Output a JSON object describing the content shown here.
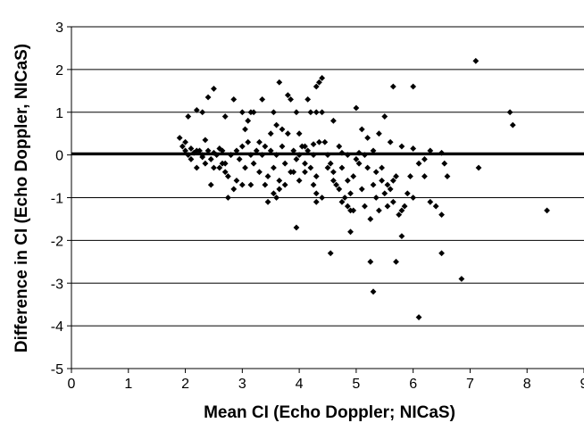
{
  "chart_data": {
    "type": "scatter",
    "title": "",
    "xlabel": "Mean CI (Echo Doppler; NICaS)",
    "ylabel": "Difference in CI (Echo Doppler, NICaS)",
    "xlim": [
      0,
      9
    ],
    "ylim": [
      -5,
      3
    ],
    "xticks": [
      "0",
      "1",
      "2",
      "3",
      "4",
      "5",
      "6",
      "7",
      "8",
      "9"
    ],
    "yticks": [
      "-5",
      "-4",
      "-3",
      "-2",
      "-1",
      "0",
      "1",
      "2",
      "3"
    ],
    "grid": "horizontal",
    "reference_line_y": 0.03,
    "marker": "diamond",
    "marker_color": "#000000",
    "points": [
      [
        1.9,
        0.4
      ],
      [
        1.95,
        0.2
      ],
      [
        2.0,
        0.1
      ],
      [
        2.05,
        0.0
      ],
      [
        2.1,
        -0.1
      ],
      [
        2.15,
        0.05
      ],
      [
        2.2,
        -0.3
      ],
      [
        2.25,
        0.1
      ],
      [
        2.3,
        0.0
      ],
      [
        2.35,
        -0.2
      ],
      [
        2.4,
        0.1
      ],
      [
        2.45,
        -0.1
      ],
      [
        2.5,
        0.05
      ],
      [
        2.55,
        0.0
      ],
      [
        2.6,
        -0.3
      ],
      [
        2.65,
        0.1
      ],
      [
        2.7,
        -0.2
      ],
      [
        2.75,
        -0.5
      ],
      [
        2.8,
        0.0
      ],
      [
        2.85,
        -0.8
      ],
      [
        2.9,
        0.1
      ],
      [
        2.95,
        -0.1
      ],
      [
        3.0,
        0.2
      ],
      [
        3.05,
        -0.3
      ],
      [
        3.1,
        0.3
      ],
      [
        3.15,
        0.0
      ],
      [
        3.2,
        -0.2
      ],
      [
        3.25,
        0.1
      ],
      [
        3.3,
        -0.4
      ],
      [
        3.35,
        0.0
      ],
      [
        3.4,
        0.2
      ],
      [
        3.45,
        -0.5
      ],
      [
        3.5,
        0.1
      ],
      [
        3.55,
        -0.3
      ],
      [
        3.6,
        0.0
      ],
      [
        3.65,
        -0.6
      ],
      [
        3.7,
        0.2
      ],
      [
        3.75,
        -0.2
      ],
      [
        3.8,
        0.5
      ],
      [
        3.85,
        -0.4
      ],
      [
        3.9,
        0.1
      ],
      [
        3.95,
        -0.1
      ],
      [
        4.0,
        0.0
      ],
      [
        4.05,
        0.2
      ],
      [
        4.1,
        -0.2
      ],
      [
        4.15,
        0.1
      ],
      [
        4.2,
        -0.3
      ],
      [
        4.25,
        0.0
      ],
      [
        4.3,
        -0.5
      ],
      [
        4.35,
        0.3
      ],
      [
        2.05,
        0.9
      ],
      [
        2.2,
        1.05
      ],
      [
        2.3,
        1.0
      ],
      [
        2.4,
        1.35
      ],
      [
        2.5,
        1.55
      ],
      [
        2.7,
        0.9
      ],
      [
        2.85,
        1.3
      ],
      [
        3.0,
        1.0
      ],
      [
        3.15,
        1.0
      ],
      [
        3.2,
        1.0
      ],
      [
        3.35,
        1.3
      ],
      [
        3.55,
        1.0
      ],
      [
        3.65,
        1.7
      ],
      [
        3.8,
        1.4
      ],
      [
        3.85,
        1.3
      ],
      [
        3.95,
        1.0
      ],
      [
        4.2,
        1.0
      ],
      [
        4.3,
        1.6
      ],
      [
        4.35,
        1.7
      ],
      [
        4.4,
        1.8
      ],
      [
        4.15,
        1.3
      ],
      [
        4.3,
        1.0
      ],
      [
        4.4,
        1.0
      ],
      [
        2.0,
        0.3
      ],
      [
        2.1,
        0.15
      ],
      [
        2.2,
        0.1
      ],
      [
        2.35,
        0.35
      ],
      [
        2.6,
        0.15
      ],
      [
        2.8,
        0.0
      ],
      [
        3.05,
        0.6
      ],
      [
        3.1,
        0.8
      ],
      [
        3.3,
        0.3
      ],
      [
        3.5,
        0.5
      ],
      [
        3.6,
        0.7
      ],
      [
        3.7,
        0.6
      ],
      [
        4.0,
        0.5
      ],
      [
        4.1,
        0.2
      ],
      [
        4.25,
        0.25
      ],
      [
        2.3,
        -0.05
      ],
      [
        2.5,
        -0.3
      ],
      [
        2.45,
        -0.7
      ],
      [
        2.65,
        -0.2
      ],
      [
        2.7,
        -0.4
      ],
      [
        2.75,
        -1.0
      ],
      [
        2.9,
        -0.6
      ],
      [
        3.0,
        -0.7
      ],
      [
        3.15,
        -0.7
      ],
      [
        3.4,
        -0.7
      ],
      [
        3.45,
        -1.1
      ],
      [
        3.55,
        -0.9
      ],
      [
        3.65,
        -0.8
      ],
      [
        3.75,
        -0.7
      ],
      [
        3.9,
        -0.4
      ],
      [
        4.0,
        -0.6
      ],
      [
        4.1,
        -0.4
      ],
      [
        4.25,
        -0.7
      ],
      [
        4.3,
        -0.9
      ],
      [
        4.4,
        -1.0
      ],
      [
        4.3,
        -1.1
      ],
      [
        3.95,
        -1.7
      ],
      [
        3.6,
        -1.0
      ],
      [
        4.5,
        0.0
      ],
      [
        4.55,
        -0.2
      ],
      [
        4.6,
        -0.4
      ],
      [
        4.65,
        -0.7
      ],
      [
        4.7,
        -0.8
      ],
      [
        4.75,
        -0.3
      ],
      [
        4.8,
        -1.0
      ],
      [
        4.85,
        -1.2
      ],
      [
        4.9,
        -1.3
      ],
      [
        4.95,
        -0.5
      ],
      [
        5.0,
        -0.1
      ],
      [
        5.05,
        -0.2
      ],
      [
        5.1,
        -0.8
      ],
      [
        5.15,
        -1.2
      ],
      [
        5.2,
        -0.3
      ],
      [
        5.25,
        -1.5
      ],
      [
        5.3,
        -0.7
      ],
      [
        5.35,
        -1.0
      ],
      [
        5.4,
        -1.3
      ],
      [
        5.45,
        -0.6
      ],
      [
        5.5,
        -0.9
      ],
      [
        5.55,
        -1.2
      ],
      [
        5.6,
        -0.8
      ],
      [
        5.65,
        -1.1
      ],
      [
        5.7,
        -0.5
      ],
      [
        5.75,
        -1.4
      ],
      [
        5.8,
        -1.3
      ],
      [
        5.85,
        -1.2
      ],
      [
        5.9,
        -0.9
      ],
      [
        6.0,
        -1.0
      ],
      [
        6.1,
        -0.2
      ],
      [
        6.2,
        -0.5
      ],
      [
        6.3,
        -1.1
      ],
      [
        6.4,
        -1.2
      ],
      [
        6.5,
        -1.4
      ],
      [
        6.55,
        -0.2
      ],
      [
        6.6,
        -0.5
      ],
      [
        4.55,
        -2.3
      ],
      [
        4.9,
        -1.8
      ],
      [
        5.25,
        -2.5
      ],
      [
        5.3,
        -3.2
      ],
      [
        5.7,
        -2.5
      ],
      [
        5.8,
        -1.9
      ],
      [
        6.1,
        -3.8
      ],
      [
        6.5,
        -2.3
      ],
      [
        6.85,
        -2.9
      ],
      [
        8.35,
        -1.3
      ],
      [
        7.1,
        2.2
      ],
      [
        7.7,
        1.0
      ],
      [
        7.75,
        0.7
      ],
      [
        7.15,
        -0.3
      ],
      [
        6.0,
        1.6
      ],
      [
        5.65,
        1.6
      ],
      [
        5.0,
        1.1
      ],
      [
        5.1,
        0.6
      ],
      [
        5.5,
        0.9
      ],
      [
        5.4,
        0.5
      ],
      [
        5.2,
        0.4
      ],
      [
        5.3,
        0.1
      ],
      [
        4.6,
        0.8
      ],
      [
        4.7,
        0.2
      ],
      [
        4.45,
        0.3
      ],
      [
        5.6,
        0.3
      ],
      [
        5.8,
        0.2
      ],
      [
        6.0,
        0.15
      ],
      [
        6.3,
        0.1
      ],
      [
        6.5,
        0.05
      ],
      [
        4.75,
        0.05
      ],
      [
        4.85,
        0.0
      ],
      [
        5.05,
        0.05
      ],
      [
        5.15,
        0.0
      ],
      [
        5.35,
        -0.4
      ],
      [
        5.45,
        -0.3
      ],
      [
        5.55,
        -0.7
      ],
      [
        5.65,
        -0.6
      ],
      [
        5.95,
        -0.5
      ],
      [
        6.2,
        -0.1
      ],
      [
        4.9,
        -0.9
      ],
      [
        4.75,
        -1.1
      ],
      [
        4.6,
        -0.6
      ],
      [
        4.5,
        -0.3
      ],
      [
        4.85,
        -0.6
      ],
      [
        4.95,
        -1.3
      ]
    ]
  }
}
